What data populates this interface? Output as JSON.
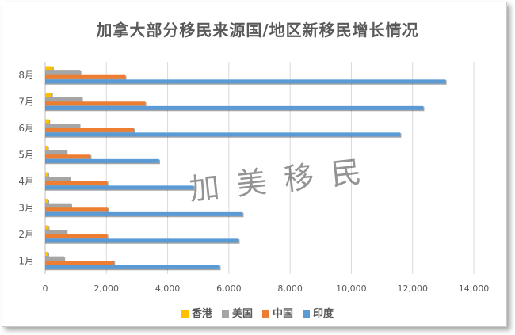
{
  "chart_data": {
    "type": "bar",
    "orientation": "horizontal",
    "title": "加拿大部分移民来源国/地区新移民增长情况",
    "categories": [
      "1月",
      "2月",
      "3月",
      "4月",
      "5月",
      "6月",
      "7月",
      "8月"
    ],
    "series": [
      {
        "name": "香港",
        "color": "#ffc000",
        "values": [
          100,
          110,
          100,
          100,
          90,
          130,
          220,
          250
        ]
      },
      {
        "name": "美国",
        "color": "#a5a5a5",
        "values": [
          620,
          700,
          850,
          800,
          700,
          1120,
          1200,
          1150
        ]
      },
      {
        "name": "中国",
        "color": "#ed7d31",
        "values": [
          2250,
          2030,
          2050,
          2030,
          1480,
          2900,
          3270,
          2620
        ]
      },
      {
        "name": "印度",
        "color": "#5b9bd5",
        "values": [
          5700,
          6320,
          6450,
          4850,
          3720,
          11600,
          12350,
          13080
        ]
      }
    ],
    "xlim": [
      0,
      14000
    ],
    "xticks": [
      0,
      2000,
      4000,
      6000,
      8000,
      10000,
      12000,
      14000
    ],
    "xtick_labels": [
      "0",
      "2,000",
      "4,000",
      "6,000",
      "8,000",
      "10,000",
      "12,000",
      "14,000"
    ],
    "legend_position": "bottom",
    "grid": true
  },
  "watermark": "加美移民"
}
